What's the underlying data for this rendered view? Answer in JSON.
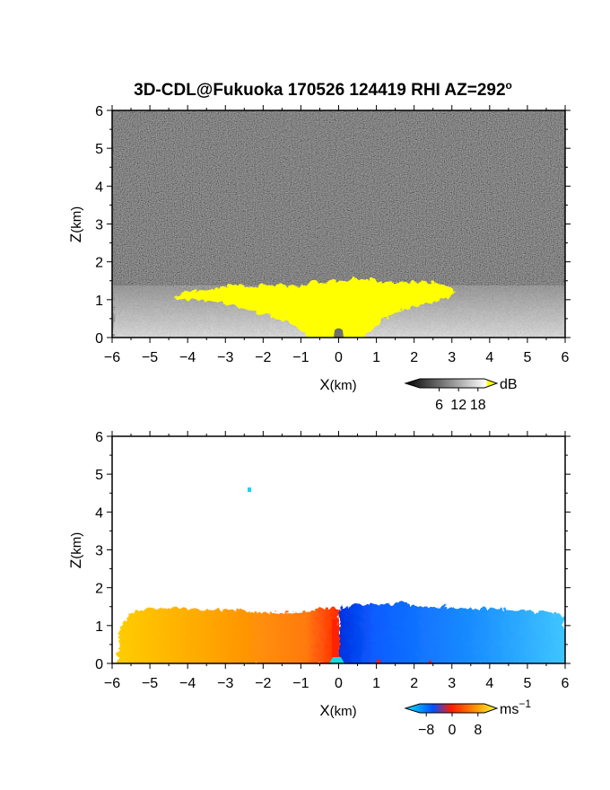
{
  "chart_data": [
    {
      "type": "heatmap",
      "title": "3D-CDL@Fukuoka 170526 124419 RHI AZ=292",
      "title_superscript": "o",
      "xlabel": "X",
      "xlabel_unit": "(km)",
      "ylabel": "Z",
      "ylabel_unit": "(km)",
      "xlim": [
        -6,
        6
      ],
      "ylim": [
        0,
        6
      ],
      "xticks": [
        -6,
        -5,
        -4,
        -3,
        -2,
        -1,
        0,
        1,
        2,
        3,
        4,
        5,
        6
      ],
      "yticks": [
        0,
        1,
        2,
        3,
        4,
        5,
        6
      ],
      "quantity": "signal-to-noise ratio",
      "colorbar": {
        "unit": "dB",
        "range": [
          0,
          20
        ],
        "ticks": [
          6,
          12,
          18
        ],
        "colors": [
          "#000000",
          "#ffffff",
          "#ffff00"
        ]
      },
      "features": {
        "saturation_region_color": "#ffff00",
        "saturation_region": "0 to ~1.5 km altitude, widest near X=0, thinning to about -4 km and +3.2 km",
        "noise_floor_above_km": 1.4
      }
    },
    {
      "type": "heatmap",
      "xlabel": "X",
      "xlabel_unit": "(km)",
      "ylabel": "Z",
      "ylabel_unit": "(km)",
      "xlim": [
        -6,
        6
      ],
      "ylim": [
        0,
        6
      ],
      "xticks": [
        -6,
        -5,
        -4,
        -3,
        -2,
        -1,
        0,
        1,
        2,
        3,
        4,
        5,
        6
      ],
      "yticks": [
        0,
        1,
        2,
        3,
        4,
        5,
        6
      ],
      "quantity": "radial velocity",
      "colorbar": {
        "unit": "ms",
        "unit_exponent": "−1",
        "range": [
          -10,
          10
        ],
        "ticks": [
          -8,
          0,
          8
        ],
        "tick_labels": [
          "−8",
          "0",
          "8"
        ],
        "colors": [
          "#00e5ff",
          "#0050ff",
          "#ff1a00",
          "#ff8c00",
          "#ffff33"
        ]
      },
      "features": {
        "valid_echo_top_km": 1.6,
        "negative_side": "X > 0 (blue, about -4 to -6 m/s)",
        "positive_side": "X < 0 (orange, about +4 to +6 m/s)",
        "isolated_echo": {
          "x_km": -2.4,
          "z_km": 4.6
        }
      }
    }
  ]
}
